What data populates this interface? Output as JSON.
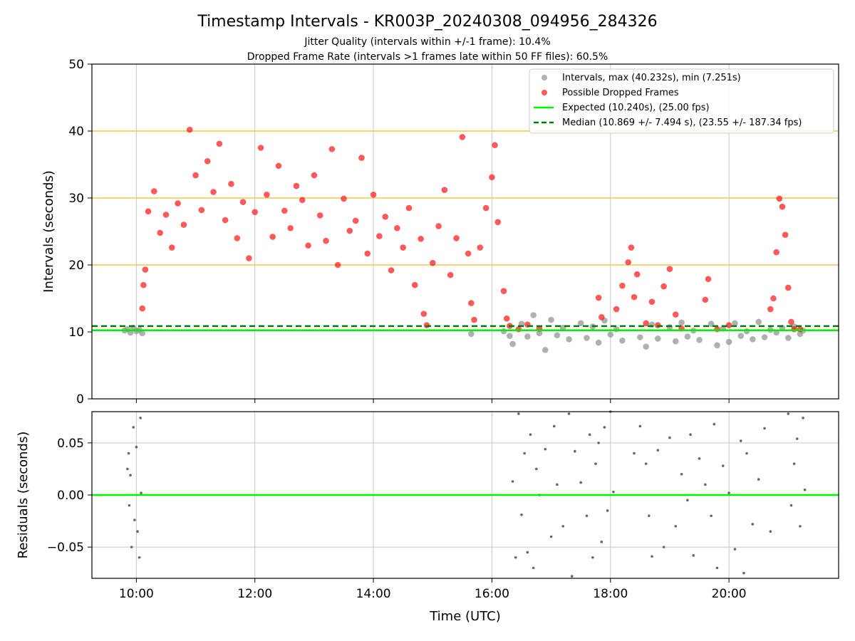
{
  "figure": {
    "title": "Timestamp Intervals - KR003P_20240308_094956_284326",
    "subtitle_1": "Jitter Quality (intervals within +/-1 frame): 10.4%",
    "subtitle_2": "Dropped Frame Rate (intervals >1 frames late within 50 FF files): 60.5%"
  },
  "colors": {
    "intervals": "#8f8f8f",
    "dropped": "#ff0000",
    "expected": "#00ee00",
    "median": "#007a00",
    "threshold_lines": "#f5c64c",
    "grid": "#c8c8c8",
    "residuals": "#666666"
  },
  "chart_data": [
    {
      "type": "scatter",
      "panel": "top",
      "ylabel": "Intervals (seconds)",
      "x_unit": "hours (UTC)",
      "xlim": [
        9.25,
        21.85
      ],
      "ylim": [
        0,
        50
      ],
      "yticks": [
        0,
        10,
        20,
        30,
        40,
        50
      ],
      "xticks": [
        10,
        12,
        14,
        16,
        18,
        20
      ],
      "xtick_labels": [
        "10:00",
        "12:00",
        "14:00",
        "16:00",
        "18:00",
        "20:00"
      ],
      "grid": "vertical",
      "threshold_lines": [
        20,
        30,
        40
      ],
      "legend_position": "top-right",
      "legend": [
        "Intervals, max (40.232s), min (7.251s)",
        "Possible Dropped Frames",
        "Expected (10.240s), (25.00 fps)",
        "Median (10.869 +/- 7.494 s), (23.55 +/- 187.34 fps)"
      ],
      "expected_value": 10.24,
      "median_value": 10.869,
      "series": [
        {
          "name": "Intervals, max (40.232s), min (7.251s)",
          "points": [
            [
              9.8,
              10.2
            ],
            [
              9.85,
              10.4
            ],
            [
              9.9,
              9.9
            ],
            [
              9.95,
              10.6
            ],
            [
              10.0,
              10.1
            ],
            [
              10.05,
              10.3
            ],
            [
              10.1,
              9.8
            ],
            [
              15.65,
              9.7
            ],
            [
              16.2,
              10.1
            ],
            [
              16.3,
              9.4
            ],
            [
              16.35,
              8.2
            ],
            [
              16.5,
              11.2
            ],
            [
              16.6,
              9.3
            ],
            [
              16.7,
              12.5
            ],
            [
              16.8,
              9.8
            ],
            [
              16.9,
              7.3
            ],
            [
              17.0,
              11.8
            ],
            [
              17.1,
              9.5
            ],
            [
              17.2,
              10.6
            ],
            [
              17.3,
              8.9
            ],
            [
              17.5,
              11.3
            ],
            [
              17.6,
              9.1
            ],
            [
              17.7,
              10.8
            ],
            [
              17.8,
              8.4
            ],
            [
              17.9,
              11.7
            ],
            [
              18.0,
              9.6
            ],
            [
              18.1,
              10.4
            ],
            [
              18.2,
              8.7
            ],
            [
              18.5,
              9.2
            ],
            [
              18.6,
              7.8
            ],
            [
              18.7,
              11.1
            ],
            [
              18.8,
              9.0
            ],
            [
              19.0,
              10.7
            ],
            [
              19.1,
              8.6
            ],
            [
              19.2,
              11.4
            ],
            [
              19.3,
              9.3
            ],
            [
              19.4,
              10.2
            ],
            [
              19.5,
              8.8
            ],
            [
              19.7,
              11.2
            ],
            [
              19.8,
              8.0
            ],
            [
              19.9,
              10.5
            ],
            [
              20.0,
              8.5
            ],
            [
              20.1,
              11.3
            ],
            [
              20.2,
              9.4
            ],
            [
              20.3,
              10.1
            ],
            [
              20.4,
              8.9
            ],
            [
              20.5,
              11.5
            ],
            [
              20.6,
              9.2
            ],
            [
              20.7,
              10.3
            ],
            [
              20.8,
              9.9
            ],
            [
              20.9,
              10.6
            ],
            [
              21.0,
              9.1
            ],
            [
              21.1,
              10.8
            ],
            [
              21.2,
              9.7
            ],
            [
              21.25,
              10.2
            ]
          ]
        },
        {
          "name": "Possible Dropped Frames",
          "points": [
            [
              10.1,
              13.5
            ],
            [
              10.12,
              17.0
            ],
            [
              10.15,
              19.3
            ],
            [
              10.2,
              28.0
            ],
            [
              10.3,
              31.0
            ],
            [
              10.4,
              24.8
            ],
            [
              10.5,
              27.5
            ],
            [
              10.6,
              22.6
            ],
            [
              10.7,
              29.2
            ],
            [
              10.8,
              26.0
            ],
            [
              10.9,
              40.2
            ],
            [
              11.0,
              33.4
            ],
            [
              11.1,
              28.2
            ],
            [
              11.2,
              35.5
            ],
            [
              11.3,
              30.9
            ],
            [
              11.4,
              38.1
            ],
            [
              11.5,
              26.7
            ],
            [
              11.6,
              32.1
            ],
            [
              11.7,
              24.0
            ],
            [
              11.8,
              29.4
            ],
            [
              11.9,
              21.0
            ],
            [
              12.0,
              27.9
            ],
            [
              12.1,
              37.5
            ],
            [
              12.2,
              30.5
            ],
            [
              12.3,
              24.2
            ],
            [
              12.4,
              34.8
            ],
            [
              12.5,
              28.1
            ],
            [
              12.6,
              25.5
            ],
            [
              12.7,
              31.8
            ],
            [
              12.8,
              29.7
            ],
            [
              12.9,
              22.9
            ],
            [
              13.0,
              33.4
            ],
            [
              13.1,
              27.4
            ],
            [
              13.2,
              23.6
            ],
            [
              13.3,
              37.3
            ],
            [
              13.4,
              20.0
            ],
            [
              13.5,
              29.9
            ],
            [
              13.6,
              25.1
            ],
            [
              13.7,
              26.6
            ],
            [
              13.8,
              36.0
            ],
            [
              13.9,
              21.7
            ],
            [
              14.0,
              30.5
            ],
            [
              14.1,
              24.3
            ],
            [
              14.2,
              27.2
            ],
            [
              14.3,
              19.2
            ],
            [
              14.4,
              25.5
            ],
            [
              14.5,
              22.6
            ],
            [
              14.6,
              28.5
            ],
            [
              14.7,
              17.0
            ],
            [
              14.8,
              23.9
            ],
            [
              14.85,
              12.7
            ],
            [
              14.9,
              11.0
            ],
            [
              15.0,
              20.3
            ],
            [
              15.1,
              25.8
            ],
            [
              15.2,
              31.2
            ],
            [
              15.3,
              18.5
            ],
            [
              15.4,
              24.0
            ],
            [
              15.5,
              39.1
            ],
            [
              15.6,
              21.7
            ],
            [
              15.65,
              14.3
            ],
            [
              15.7,
              11.8
            ],
            [
              15.8,
              22.6
            ],
            [
              15.9,
              28.5
            ],
            [
              16.0,
              33.1
            ],
            [
              16.05,
              37.9
            ],
            [
              16.1,
              26.4
            ],
            [
              16.2,
              16.1
            ],
            [
              16.25,
              12.0
            ],
            [
              16.3,
              10.9
            ],
            [
              16.45,
              10.4
            ],
            [
              16.6,
              11.1
            ],
            [
              16.8,
              10.5
            ],
            [
              17.8,
              15.1
            ],
            [
              17.85,
              12.2
            ],
            [
              18.1,
              13.4
            ],
            [
              18.2,
              16.9
            ],
            [
              18.3,
              20.4
            ],
            [
              18.35,
              22.6
            ],
            [
              18.4,
              15.2
            ],
            [
              18.45,
              18.6
            ],
            [
              18.6,
              11.3
            ],
            [
              18.7,
              14.5
            ],
            [
              18.8,
              11.0
            ],
            [
              18.9,
              16.8
            ],
            [
              19.0,
              19.4
            ],
            [
              19.1,
              12.6
            ],
            [
              19.2,
              10.5
            ],
            [
              19.6,
              14.8
            ],
            [
              19.65,
              17.9
            ],
            [
              19.8,
              10.4
            ],
            [
              20.0,
              11.0
            ],
            [
              20.7,
              13.4
            ],
            [
              20.75,
              15.0
            ],
            [
              20.8,
              21.9
            ],
            [
              20.85,
              29.9
            ],
            [
              20.9,
              28.7
            ],
            [
              20.95,
              24.5
            ],
            [
              21.0,
              16.6
            ],
            [
              21.05,
              11.5
            ],
            [
              21.1,
              10.4
            ],
            [
              21.2,
              10.4
            ]
          ]
        },
        {
          "name": "Expected (10.240s), (25.00 fps)",
          "y": 10.24
        },
        {
          "name": "Median (10.869 +/- 7.494 s), (23.55 +/- 187.34 fps)",
          "y": 10.869
        }
      ]
    },
    {
      "type": "scatter",
      "panel": "bottom",
      "xlabel": "Time (UTC)",
      "ylabel": "Residuals (seconds)",
      "xlim": [
        9.25,
        21.85
      ],
      "ylim": [
        -0.08,
        0.08
      ],
      "yticks": [
        -0.05,
        0.0,
        0.05
      ],
      "ytick_labels": [
        "−0.05",
        "0.00",
        "0.05"
      ],
      "xticks": [
        10,
        12,
        14,
        16,
        18,
        20
      ],
      "xtick_labels": [
        "10:00",
        "12:00",
        "14:00",
        "16:00",
        "18:00",
        "20:00"
      ],
      "grid": "both",
      "zero_line": 0,
      "points": [
        [
          9.85,
          0.025
        ],
        [
          9.87,
          0.04
        ],
        [
          9.88,
          -0.01
        ],
        [
          9.9,
          0.019
        ],
        [
          9.92,
          -0.05
        ],
        [
          9.95,
          0.065
        ],
        [
          9.97,
          -0.024
        ],
        [
          10.0,
          0.046
        ],
        [
          10.02,
          -0.035
        ],
        [
          10.05,
          -0.06
        ],
        [
          10.07,
          0.074
        ],
        [
          10.08,
          0.002
        ],
        [
          16.35,
          0.013
        ],
        [
          16.4,
          -0.06
        ],
        [
          16.45,
          0.078
        ],
        [
          16.5,
          -0.019
        ],
        [
          16.55,
          0.04
        ],
        [
          16.6,
          -0.055
        ],
        [
          16.65,
          0.058
        ],
        [
          16.7,
          -0.07
        ],
        [
          16.75,
          0.025
        ],
        [
          16.8,
          0.0
        ],
        [
          16.9,
          0.044
        ],
        [
          17.0,
          -0.04
        ],
        [
          17.05,
          0.066
        ],
        [
          17.1,
          0.01
        ],
        [
          17.2,
          -0.03
        ],
        [
          17.3,
          0.078
        ],
        [
          17.35,
          -0.078
        ],
        [
          17.4,
          0.042
        ],
        [
          17.5,
          0.012
        ],
        [
          17.6,
          -0.02
        ],
        [
          17.65,
          0.058
        ],
        [
          17.7,
          -0.06
        ],
        [
          17.75,
          0.03
        ],
        [
          17.8,
          0.05
        ],
        [
          17.85,
          -0.045
        ],
        [
          17.9,
          0.065
        ],
        [
          17.95,
          -0.015
        ],
        [
          18.0,
          0.08
        ],
        [
          18.05,
          0.003
        ],
        [
          18.4,
          0.04
        ],
        [
          18.5,
          0.066
        ],
        [
          18.6,
          0.03
        ],
        [
          18.65,
          -0.02
        ],
        [
          18.7,
          -0.059
        ],
        [
          18.8,
          0.043
        ],
        [
          18.9,
          -0.05
        ],
        [
          19.0,
          0.055
        ],
        [
          19.1,
          -0.03
        ],
        [
          19.2,
          0.02
        ],
        [
          19.3,
          -0.005
        ],
        [
          19.35,
          0.058
        ],
        [
          19.4,
          -0.058
        ],
        [
          19.5,
          0.035
        ],
        [
          19.6,
          0.01
        ],
        [
          19.7,
          -0.02
        ],
        [
          19.75,
          0.068
        ],
        [
          19.8,
          -0.07
        ],
        [
          19.9,
          0.028
        ],
        [
          20.0,
          0.002
        ],
        [
          20.1,
          -0.052
        ],
        [
          20.2,
          0.052
        ],
        [
          20.25,
          -0.075
        ],
        [
          20.3,
          0.04
        ],
        [
          20.4,
          -0.028
        ],
        [
          20.5,
          0.015
        ],
        [
          20.6,
          0.064
        ],
        [
          20.7,
          -0.035
        ],
        [
          21.0,
          0.078
        ],
        [
          21.05,
          -0.01
        ],
        [
          21.1,
          0.03
        ],
        [
          21.15,
          0.054
        ],
        [
          21.2,
          -0.03
        ],
        [
          21.25,
          0.074
        ],
        [
          21.28,
          0.005
        ]
      ]
    }
  ]
}
